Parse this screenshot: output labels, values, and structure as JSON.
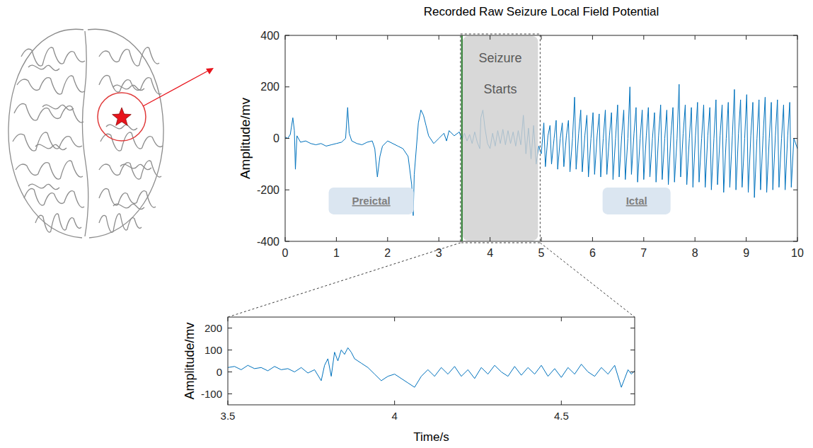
{
  "chart_data": [
    {
      "type": "line",
      "title": "Recorded Raw Seizure Local Field Potential",
      "ylabel": "Amplitude/mv",
      "color": "#0072bd",
      "grid": false,
      "xlim": [
        0,
        10
      ],
      "xticks": [
        0,
        1,
        2,
        3,
        4,
        5,
        6,
        7,
        8,
        9,
        10
      ],
      "ylim": [
        -400,
        400
      ],
      "yticks": [
        -400,
        -200,
        0,
        200,
        400
      ],
      "onset": 3.45,
      "highlight": {
        "text": "Seizure Starts",
        "x": [
          3.45,
          4.95
        ]
      },
      "annotations": [
        {
          "text": "Preictal",
          "x": 1.68,
          "y": -243
        },
        {
          "text": "Ictal",
          "x": 6.86,
          "y": -243
        }
      ],
      "x": [
        0,
        0.05,
        0.1,
        0.15,
        0.18,
        0.2,
        0.23,
        0.3,
        0.4,
        0.5,
        0.6,
        0.7,
        0.8,
        0.9,
        1,
        1.1,
        1.18,
        1.22,
        1.25,
        1.3,
        1.4,
        1.5,
        1.6,
        1.7,
        1.75,
        1.8,
        1.85,
        1.9,
        2,
        2.1,
        2.2,
        2.3,
        2.4,
        2.47,
        2.5,
        2.52,
        2.56,
        2.6,
        2.65,
        2.7,
        2.75,
        2.8,
        2.9,
        3,
        3.1,
        3.15,
        3.2,
        3.3,
        3.4,
        3.45,
        3.5,
        3.55,
        3.6,
        3.65,
        3.7,
        3.75,
        3.8,
        3.82,
        3.86,
        3.9,
        3.95,
        4,
        4.05,
        4.1,
        4.15,
        4.2,
        4.25,
        4.3,
        4.35,
        4.4,
        4.45,
        4.5,
        4.55,
        4.6,
        4.65,
        4.7,
        4.75,
        4.8,
        4.85,
        4.9,
        4.95,
        5,
        5.05,
        5.08,
        5.13,
        5.17,
        5.2,
        5.25,
        5.29,
        5.32,
        5.37,
        5.41,
        5.44,
        5.49,
        5.53,
        5.56,
        5.61,
        5.65,
        5.68,
        5.73,
        5.77,
        5.8,
        5.85,
        5.89,
        5.92,
        5.97,
        6.01,
        6.04,
        6.09,
        6.13,
        6.16,
        6.21,
        6.25,
        6.28,
        6.33,
        6.37,
        6.4,
        6.45,
        6.49,
        6.52,
        6.57,
        6.61,
        6.64,
        6.69,
        6.73,
        6.76,
        6.81,
        6.85,
        6.88,
        6.93,
        6.97,
        7,
        7.05,
        7.09,
        7.12,
        7.17,
        7.21,
        7.24,
        7.29,
        7.33,
        7.36,
        7.41,
        7.45,
        7.48,
        7.53,
        7.57,
        7.6,
        7.65,
        7.69,
        7.72,
        7.77,
        7.81,
        7.84,
        7.89,
        7.93,
        7.96,
        8.01,
        8.05,
        8.08,
        8.13,
        8.17,
        8.2,
        8.25,
        8.29,
        8.32,
        8.37,
        8.41,
        8.44,
        8.49,
        8.53,
        8.56,
        8.61,
        8.65,
        8.68,
        8.73,
        8.77,
        8.8,
        8.85,
        8.89,
        8.92,
        8.97,
        9.01,
        9.04,
        9.09,
        9.13,
        9.16,
        9.21,
        9.25,
        9.28,
        9.33,
        9.37,
        9.4,
        9.45,
        9.49,
        9.52,
        9.57,
        9.61,
        9.64,
        9.69,
        9.73,
        9.76,
        9.81,
        9.85,
        9.88,
        9.93,
        10
      ],
      "values": [
        5,
        0,
        15,
        80,
        30,
        -120,
        10,
        -15,
        -10,
        -20,
        -25,
        -20,
        -30,
        -25,
        -20,
        -15,
        0,
        120,
        20,
        -10,
        -20,
        -25,
        -15,
        -10,
        -40,
        -150,
        -70,
        -30,
        -10,
        -20,
        -30,
        -40,
        -70,
        -180,
        -300,
        -140,
        -40,
        60,
        110,
        90,
        50,
        10,
        -20,
        0,
        20,
        -10,
        30,
        10,
        25,
        -5,
        20,
        -10,
        15,
        -20,
        25,
        -15,
        -40,
        80,
        110,
        40,
        -20,
        -40,
        20,
        -30,
        30,
        -20,
        35,
        -25,
        30,
        -20,
        25,
        -30,
        30,
        -25,
        90,
        -60,
        40,
        -80,
        50,
        -100,
        -30,
        -60,
        60,
        -110,
        10,
        50,
        -100,
        0,
        70,
        -120,
        0,
        60,
        -110,
        10,
        70,
        -130,
        0,
        160,
        -120,
        20,
        110,
        -130,
        10,
        90,
        -150,
        0,
        100,
        -140,
        10,
        95,
        -150,
        0,
        110,
        -140,
        10,
        100,
        -160,
        0,
        130,
        -150,
        10,
        110,
        -160,
        0,
        200,
        -140,
        20,
        120,
        -170,
        0,
        110,
        -160,
        10,
        120,
        -150,
        0,
        100,
        -170,
        10,
        130,
        -160,
        0,
        110,
        -180,
        10,
        120,
        -170,
        0,
        210,
        -150,
        20,
        130,
        -180,
        0,
        120,
        -190,
        10,
        140,
        -170,
        0,
        130,
        -190,
        10,
        120,
        -200,
        0,
        150,
        -180,
        10,
        130,
        -210,
        0,
        140,
        -190,
        10,
        190,
        -200,
        20,
        150,
        -190,
        0,
        170,
        -210,
        10,
        140,
        -230,
        0,
        150,
        -200,
        10,
        160,
        -210,
        0,
        140,
        -200,
        10,
        150,
        -190,
        0,
        130,
        -200,
        10,
        140,
        -190,
        0,
        -40
      ]
    },
    {
      "type": "line",
      "xlabel": "Time/s",
      "ylabel": "Amplitude/mv",
      "color": "#0072bd",
      "grid": false,
      "xlim": [
        3.5,
        4.72
      ],
      "xticks": [
        3.5,
        4,
        4.5
      ],
      "ylim": [
        -150,
        250
      ],
      "yticks": [
        -100,
        0,
        100,
        200
      ],
      "x": [
        3.5,
        3.52,
        3.54,
        3.56,
        3.58,
        3.6,
        3.62,
        3.64,
        3.66,
        3.68,
        3.7,
        3.72,
        3.74,
        3.76,
        3.78,
        3.79,
        3.8,
        3.81,
        3.82,
        3.83,
        3.84,
        3.85,
        3.86,
        3.87,
        3.88,
        3.9,
        3.92,
        3.94,
        3.96,
        3.98,
        4,
        4.02,
        4.04,
        4.06,
        4.08,
        4.1,
        4.12,
        4.14,
        4.16,
        4.18,
        4.2,
        4.22,
        4.24,
        4.26,
        4.28,
        4.3,
        4.32,
        4.34,
        4.36,
        4.38,
        4.4,
        4.42,
        4.44,
        4.46,
        4.48,
        4.5,
        4.52,
        4.54,
        4.56,
        4.58,
        4.6,
        4.62,
        4.64,
        4.66,
        4.68,
        4.69,
        4.7,
        4.71,
        4.72
      ],
      "values": [
        20,
        25,
        10,
        30,
        15,
        20,
        5,
        25,
        10,
        15,
        0,
        20,
        -5,
        10,
        -40,
        30,
        60,
        -20,
        90,
        50,
        100,
        80,
        110,
        90,
        60,
        40,
        20,
        -10,
        -40,
        -20,
        -10,
        -30,
        -50,
        -70,
        -20,
        10,
        -20,
        20,
        -10,
        25,
        -20,
        10,
        -30,
        20,
        -10,
        30,
        0,
        -20,
        25,
        -15,
        20,
        -10,
        30,
        -20,
        15,
        -25,
        20,
        -10,
        35,
        0,
        -20,
        20,
        -10,
        30,
        -70,
        -30,
        10,
        -10,
        5
      ]
    }
  ]
}
